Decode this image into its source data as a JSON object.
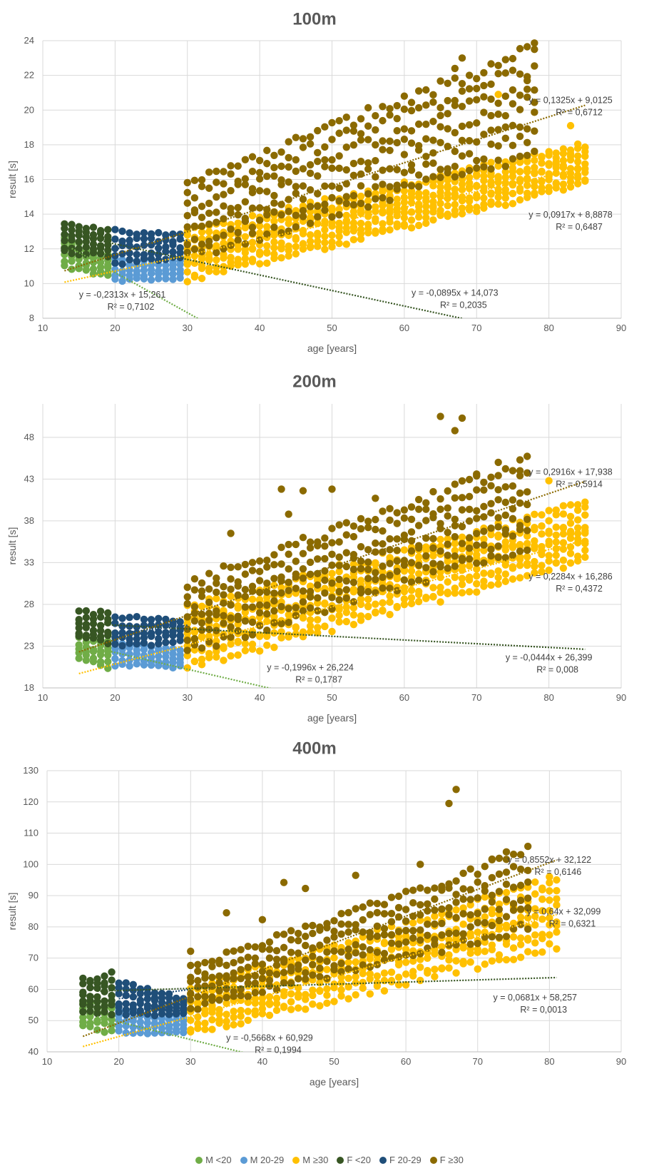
{
  "legend": [
    {
      "label": "M <20",
      "color": "#70ad47"
    },
    {
      "label": "M 20-29",
      "color": "#5b9bd5"
    },
    {
      "label": "M ≥30",
      "color": "#ffc000"
    },
    {
      "label": "F <20",
      "color": "#375623"
    },
    {
      "label": "F 20-29",
      "color": "#1f4e79"
    },
    {
      "label": "F ≥30",
      "color": "#8b6a00"
    }
  ],
  "chart_data": [
    {
      "type": "scatter",
      "title": "100m",
      "xlabel": "age [years]",
      "ylabel": "result [s]",
      "xlim": [
        10,
        90
      ],
      "ylim": [
        8,
        24
      ],
      "xticks": [
        10,
        20,
        30,
        40,
        50,
        60,
        70,
        80,
        90
      ],
      "yticks": [
        8,
        10,
        12,
        14,
        16,
        18,
        20,
        22,
        24
      ],
      "grid": true,
      "legend_position": "bottom",
      "series": [
        {
          "name": "M <20",
          "color": "#70ad47",
          "x_range": [
            13,
            19
          ],
          "y_min_at_start": [
            11.0,
            12.6
          ],
          "y_min_at_end": [
            10.4,
            11.6
          ],
          "points_per_age": 6
        },
        {
          "name": "M 20-29",
          "color": "#5b9bd5",
          "x_range": [
            20,
            29
          ],
          "y_min_at_start": [
            10.2,
            11.4
          ],
          "y_min_at_end": [
            10.3,
            11.3
          ],
          "points_per_age": 5
        },
        {
          "name": "M ≥30",
          "color": "#ffc000",
          "x_range": [
            30,
            85
          ],
          "y_min_at_start": [
            10.2,
            13.0
          ],
          "y_min_at_end": [
            15.8,
            18.0
          ],
          "points_per_age": 9
        },
        {
          "name": "F <20",
          "color": "#375623",
          "x_range": [
            13,
            19
          ],
          "y_min_at_start": [
            11.8,
            13.4
          ],
          "y_min_at_end": [
            11.6,
            13.1
          ],
          "points_per_age": 6
        },
        {
          "name": "F 20-29",
          "color": "#1f4e79",
          "x_range": [
            20,
            29
          ],
          "y_min_at_start": [
            11.2,
            13.0
          ],
          "y_min_at_end": [
            11.5,
            12.8
          ],
          "points_per_age": 5
        },
        {
          "name": "F ≥30",
          "color": "#8b6a00",
          "x_range": [
            30,
            78
          ],
          "y_min_at_start": [
            11.6,
            15.8
          ],
          "y_min_at_end": [
            17.5,
            23.5
          ],
          "points_per_age": 7
        }
      ],
      "trendlines": [
        {
          "series": "M <20",
          "x_range": [
            14,
            31.5
          ],
          "slope": -0.2313,
          "intercept": 15.261,
          "equation": "y = -0,2313x + 15,261",
          "r2": "R² = 0,7102",
          "label_x": 21,
          "label_y": 9.2
        },
        {
          "series": "F <20",
          "x_range": [
            13,
            68
          ],
          "slope": -0.0895,
          "intercept": 14.073,
          "equation": "y = -0,0895x + 14,073",
          "r2": "R² = 0,2035",
          "label_x": 67,
          "label_y": 9.3
        },
        {
          "series": "M ≥30",
          "x_range": [
            13,
            85
          ],
          "slope": 0.0917,
          "intercept": 8.8878,
          "equation": "y = 0,0917x + 8,8878",
          "r2": "R² = 0,6487",
          "label_x": 83,
          "label_y": 13.8
        },
        {
          "series": "F ≥30",
          "x_range": [
            13,
            85
          ],
          "slope": 0.1325,
          "intercept": 9.0125,
          "equation": "y = 0,1325x + 9,0125",
          "r2": "R² = 0,6712",
          "label_x": 83,
          "label_y": 20.4
        },
        {
          "series": "F 20-29",
          "x_range": [
            20,
            30
          ],
          "slope": 0.05,
          "intercept": 11.0,
          "equation": "",
          "r2": "",
          "label_x": 0,
          "label_y": 0
        }
      ],
      "outliers": [
        {
          "series": "F ≥30",
          "x": 67,
          "y": 22.4
        },
        {
          "series": "F ≥30",
          "x": 68,
          "y": 23.0
        },
        {
          "series": "F ≥30",
          "x": 78,
          "y": 23.5
        },
        {
          "series": "F ≥30",
          "x": 77,
          "y": 21.7
        },
        {
          "series": "M ≥30",
          "x": 83,
          "y": 19.1
        },
        {
          "series": "M ≥30",
          "x": 73,
          "y": 20.9
        }
      ]
    },
    {
      "type": "scatter",
      "title": "200m",
      "xlabel": "age [years]",
      "ylabel": "result [s]",
      "xlim": [
        10,
        90
      ],
      "ylim": [
        18,
        52
      ],
      "xticks": [
        10,
        20,
        30,
        40,
        50,
        60,
        70,
        80,
        90
      ],
      "yticks": [
        18,
        23,
        28,
        33,
        38,
        43,
        48
      ],
      "grid": true,
      "legend_position": "bottom",
      "series": [
        {
          "name": "M <20",
          "color": "#70ad47",
          "x_range": [
            15,
            19
          ],
          "y_min_at_start": [
            21.5,
            24.5
          ],
          "y_min_at_end": [
            20.5,
            23.5
          ],
          "points_per_age": 6
        },
        {
          "name": "M 20-29",
          "color": "#5b9bd5",
          "x_range": [
            20,
            29
          ],
          "y_min_at_start": [
            20.8,
            23.5
          ],
          "y_min_at_end": [
            20.5,
            22.5
          ],
          "points_per_age": 5
        },
        {
          "name": "M ≥30",
          "color": "#ffc000",
          "x_range": [
            30,
            85
          ],
          "y_min_at_start": [
            20.5,
            27.5
          ],
          "y_min_at_end": [
            33.5,
            40.0
          ],
          "points_per_age": 9
        },
        {
          "name": "F <20",
          "color": "#375623",
          "x_range": [
            15,
            19
          ],
          "y_min_at_start": [
            24.0,
            27.0
          ],
          "y_min_at_end": [
            23.5,
            27.0
          ],
          "points_per_age": 6
        },
        {
          "name": "F 20-29",
          "color": "#1f4e79",
          "x_range": [
            20,
            29
          ],
          "y_min_at_start": [
            23.0,
            26.5
          ],
          "y_min_at_end": [
            23.5,
            26.0
          ],
          "points_per_age": 5
        },
        {
          "name": "F ≥30",
          "color": "#8b6a00",
          "x_range": [
            30,
            77
          ],
          "y_min_at_start": [
            22.5,
            30.5
          ],
          "y_min_at_end": [
            35.0,
            45.0
          ],
          "points_per_age": 7
        }
      ],
      "trendlines": [
        {
          "series": "M <20",
          "x_range": [
            16,
            41.5
          ],
          "slope": -0.1996,
          "intercept": 26.224,
          "equation": "y = -0,1996x + 26,224",
          "r2": "R² = 0,1787",
          "label_x": 47,
          "label_y": 20.1
        },
        {
          "series": "F <20",
          "x_range": [
            16,
            85
          ],
          "slope": -0.0444,
          "intercept": 26.399,
          "equation": "y = -0,0444x + 26,399",
          "r2": "R² = 0,008",
          "label_x": 80,
          "label_y": 21.3
        },
        {
          "series": "M ≥30",
          "x_range": [
            15,
            85
          ],
          "slope": 0.2284,
          "intercept": 16.286,
          "equation": "y = 0,2284x + 16,286",
          "r2": "R² = 0,4372",
          "label_x": 83,
          "label_y": 31.0
        },
        {
          "series": "F ≥30",
          "x_range": [
            15,
            85
          ],
          "slope": 0.2916,
          "intercept": 17.938,
          "equation": "y = 0,2916x + 17,938",
          "r2": "R² = 0,5914",
          "label_x": 83,
          "label_y": 43.5
        },
        {
          "series": "F 20-29",
          "x_range": [
            20,
            30
          ],
          "slope": 0.1,
          "intercept": 22.5,
          "equation": "",
          "r2": "",
          "label_x": 0,
          "label_y": 0
        }
      ],
      "outliers": [
        {
          "series": "F ≥30",
          "x": 65,
          "y": 50.5
        },
        {
          "series": "F ≥30",
          "x": 67,
          "y": 48.8
        },
        {
          "series": "F ≥30",
          "x": 68,
          "y": 50.3
        },
        {
          "series": "F ≥30",
          "x": 43,
          "y": 41.8
        },
        {
          "series": "F ≥30",
          "x": 46,
          "y": 41.6
        },
        {
          "series": "F ≥30",
          "x": 50,
          "y": 41.8
        },
        {
          "series": "F ≥30",
          "x": 44,
          "y": 38.8
        },
        {
          "series": "F ≥30",
          "x": 56,
          "y": 40.7
        },
        {
          "series": "F ≥30",
          "x": 36,
          "y": 36.5
        },
        {
          "series": "F ≥30",
          "x": 76,
          "y": 45.3
        },
        {
          "series": "F ≥30",
          "x": 73,
          "y": 45.0
        },
        {
          "series": "F ≥30",
          "x": 70,
          "y": 43.6
        },
        {
          "series": "M ≥30",
          "x": 80,
          "y": 42.8
        },
        {
          "series": "M ≥30",
          "x": 85,
          "y": 36.8
        }
      ]
    },
    {
      "type": "scatter",
      "title": "400m",
      "xlabel": "age [years]",
      "ylabel": "result [s]",
      "xlim": [
        10,
        90
      ],
      "ylim": [
        40,
        130
      ],
      "xticks": [
        10,
        20,
        30,
        40,
        50,
        60,
        70,
        80,
        90
      ],
      "yticks": [
        40,
        50,
        60,
        70,
        80,
        90,
        100,
        110,
        120,
        130
      ],
      "grid": true,
      "legend_position": "bottom",
      "series": [
        {
          "name": "M <20",
          "color": "#70ad47",
          "x_range": [
            15,
            19
          ],
          "y_min_at_start": [
            48.0,
            56.0
          ],
          "y_min_at_end": [
            46.5,
            55.0
          ],
          "points_per_age": 6
        },
        {
          "name": "M 20-29",
          "color": "#5b9bd5",
          "x_range": [
            20,
            29
          ],
          "y_min_at_start": [
            46.5,
            53.5
          ],
          "y_min_at_end": [
            46.0,
            51.0
          ],
          "points_per_age": 5
        },
        {
          "name": "M ≥30",
          "color": "#ffc000",
          "x_range": [
            30,
            81
          ],
          "y_min_at_start": [
            46.0,
            60.0
          ],
          "y_min_at_end": [
            74.0,
            95.0
          ],
          "points_per_age": 8
        },
        {
          "name": "F <20",
          "color": "#375623",
          "x_range": [
            15,
            19
          ],
          "y_min_at_start": [
            53.0,
            63.0
          ],
          "y_min_at_end": [
            52.0,
            65.0
          ],
          "points_per_age": 7
        },
        {
          "name": "F 20-29",
          "color": "#1f4e79",
          "x_range": [
            20,
            29
          ],
          "y_min_at_start": [
            52.0,
            62.0
          ],
          "y_min_at_end": [
            52.0,
            57.0
          ],
          "points_per_age": 6
        },
        {
          "name": "F ≥30",
          "color": "#8b6a00",
          "x_range": [
            30,
            77
          ],
          "y_min_at_start": [
            54.0,
            67.0
          ],
          "y_min_at_end": [
            80.0,
            104.0
          ],
          "points_per_age": 6
        }
      ],
      "trendlines": [
        {
          "series": "M <20",
          "x_range": [
            17,
            37.5
          ],
          "slope": -0.5668,
          "intercept": 60.929,
          "equation": "y = -0,5668x + 60,929",
          "r2": "R² = 0,1994",
          "label_x": 41,
          "label_y": 43.5
        },
        {
          "series": "F <20",
          "x_range": [
            17,
            81
          ],
          "slope": 0.0681,
          "intercept": 58.257,
          "equation": "y = 0,0681x + 58,257",
          "r2": "R² = 0,0013",
          "label_x": 78,
          "label_y": 56.5
        },
        {
          "series": "M ≥30",
          "x_range": [
            15,
            81
          ],
          "slope": 0.64,
          "intercept": 32.099,
          "equation": "y = 0,64x + 32,099",
          "r2": "R² = 0,6321",
          "label_x": 82,
          "label_y": 84.0
        },
        {
          "series": "F ≥30",
          "x_range": [
            15,
            81
          ],
          "slope": 0.8552,
          "intercept": 32.122,
          "equation": "y = 0,8552x + 32,122",
          "r2": "R² = 0,6146",
          "label_x": 80,
          "label_y": 100.5
        },
        {
          "series": "F 20-29",
          "x_range": [
            20,
            30
          ],
          "slope": 0.3,
          "intercept": 51.0,
          "equation": "",
          "r2": "",
          "label_x": 0,
          "label_y": 0
        }
      ],
      "outliers": [
        {
          "series": "F ≥30",
          "x": 66,
          "y": 119.5
        },
        {
          "series": "F ≥30",
          "x": 67,
          "y": 124.0
        },
        {
          "series": "F ≥30",
          "x": 62,
          "y": 100.0
        },
        {
          "series": "F ≥30",
          "x": 74,
          "y": 104.0
        },
        {
          "series": "F ≥30",
          "x": 72,
          "y": 101.5
        },
        {
          "series": "F ≥30",
          "x": 53,
          "y": 96.5
        },
        {
          "series": "F ≥30",
          "x": 43,
          "y": 94.2
        },
        {
          "series": "F ≥30",
          "x": 46,
          "y": 92.3
        },
        {
          "series": "F ≥30",
          "x": 35,
          "y": 84.5
        },
        {
          "series": "F ≥30",
          "x": 40,
          "y": 82.3
        },
        {
          "series": "F ≥30",
          "x": 30,
          "y": 72.2
        },
        {
          "series": "M ≥30",
          "x": 80,
          "y": 96.0
        }
      ]
    }
  ]
}
